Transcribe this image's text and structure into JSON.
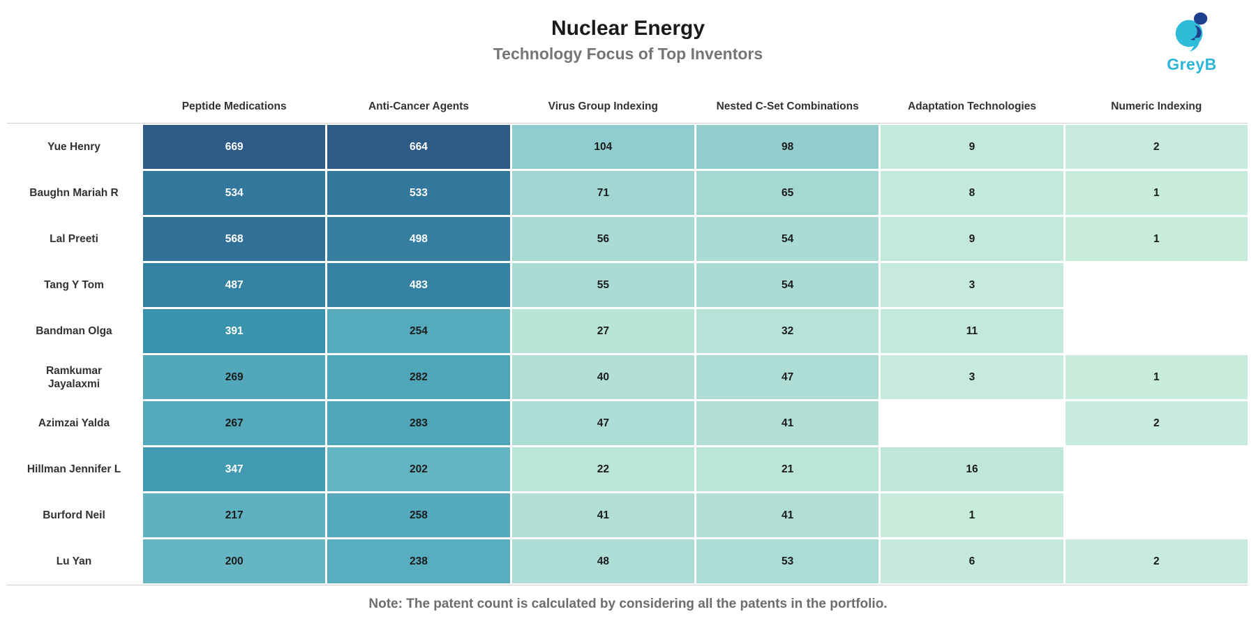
{
  "header": {
    "title": "Nuclear Energy",
    "subtitle": "Technology Focus of Top Inventors",
    "logo": {
      "text": "GreyB"
    }
  },
  "chart_data": {
    "type": "heatmap",
    "title": "Nuclear Energy",
    "subtitle": "Technology Focus of Top Inventors",
    "columns": [
      "Peptide Medications",
      "Anti-Cancer Agents",
      "Virus Group Indexing",
      "Nested C-Set Combinations",
      "Adaptation Technologies",
      "Numeric Indexing"
    ],
    "rows": [
      {
        "name": "Yue Henry",
        "values": [
          669,
          664,
          104,
          98,
          9,
          2
        ]
      },
      {
        "name": "Baughn Mariah R",
        "values": [
          534,
          533,
          71,
          65,
          8,
          1
        ]
      },
      {
        "name": "Lal Preeti",
        "values": [
          568,
          498,
          56,
          54,
          9,
          1
        ]
      },
      {
        "name": "Tang Y Tom",
        "values": [
          487,
          483,
          55,
          54,
          3,
          null
        ]
      },
      {
        "name": "Bandman Olga",
        "values": [
          391,
          254,
          27,
          32,
          11,
          null
        ]
      },
      {
        "name": "Ramkumar Jayalaxmi",
        "values": [
          269,
          282,
          40,
          47,
          3,
          1
        ]
      },
      {
        "name": "Azimzai Yalda",
        "values": [
          267,
          283,
          47,
          41,
          null,
          2
        ]
      },
      {
        "name": "Hillman Jennifer L",
        "values": [
          347,
          202,
          22,
          21,
          16,
          null
        ]
      },
      {
        "name": "Burford Neil",
        "values": [
          217,
          258,
          41,
          41,
          1,
          null
        ]
      },
      {
        "name": "Lu Yan",
        "values": [
          200,
          238,
          48,
          53,
          6,
          2
        ]
      }
    ],
    "value_range": [
      0,
      669
    ],
    "legend": "none",
    "grid": "white 3px gaps between cells"
  },
  "colors": {
    "scale_stops": [
      {
        "t": 0,
        "hex": "#c8ecdc"
      },
      {
        "t": 0.13,
        "hex": "#98d1d0"
      },
      {
        "t": 0.33,
        "hex": "#5cb0c0"
      },
      {
        "t": 0.58,
        "hex": "#3a94ac"
      },
      {
        "t": 0.8,
        "hex": "#32789c"
      },
      {
        "t": 1,
        "hex": "#2d5a87"
      }
    ],
    "white_text_threshold": 300,
    "dark_text": "#1b1b1b",
    "light_text": "#ffffff",
    "logo_cyan": "#2cb5d8",
    "logo_navy": "#1f3f8f",
    "rule_gray": "#cfcfcf"
  },
  "footer": {
    "note": "Note: The patent count is calculated by considering all the patents in the portfolio."
  }
}
